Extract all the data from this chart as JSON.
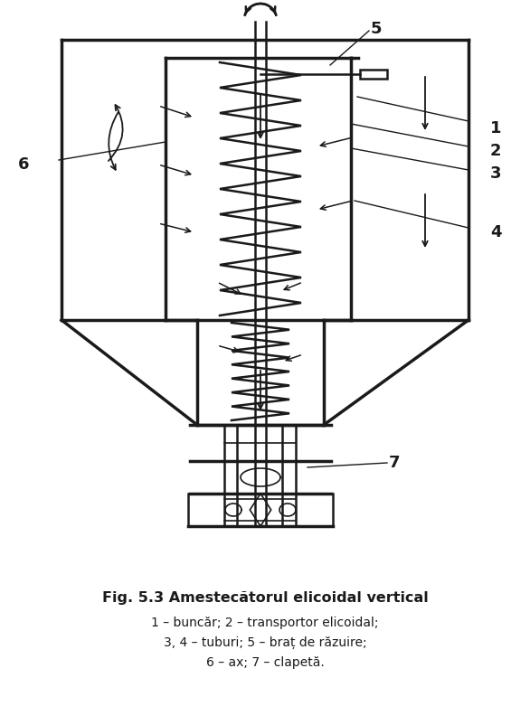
{
  "title": "Fig. 5.3 Amestecătorul elicoidal vertical",
  "caption_lines": [
    "1 – buncăr; 2 – transportor elicoidal;",
    "3, 4 – tuburi; 5 – braț de răzuire;",
    "6 – ax; 7 – clapetă."
  ],
  "bg_color": "#ffffff",
  "line_color": "#1a1a1a",
  "fig_width": 5.86,
  "fig_height": 8.02
}
